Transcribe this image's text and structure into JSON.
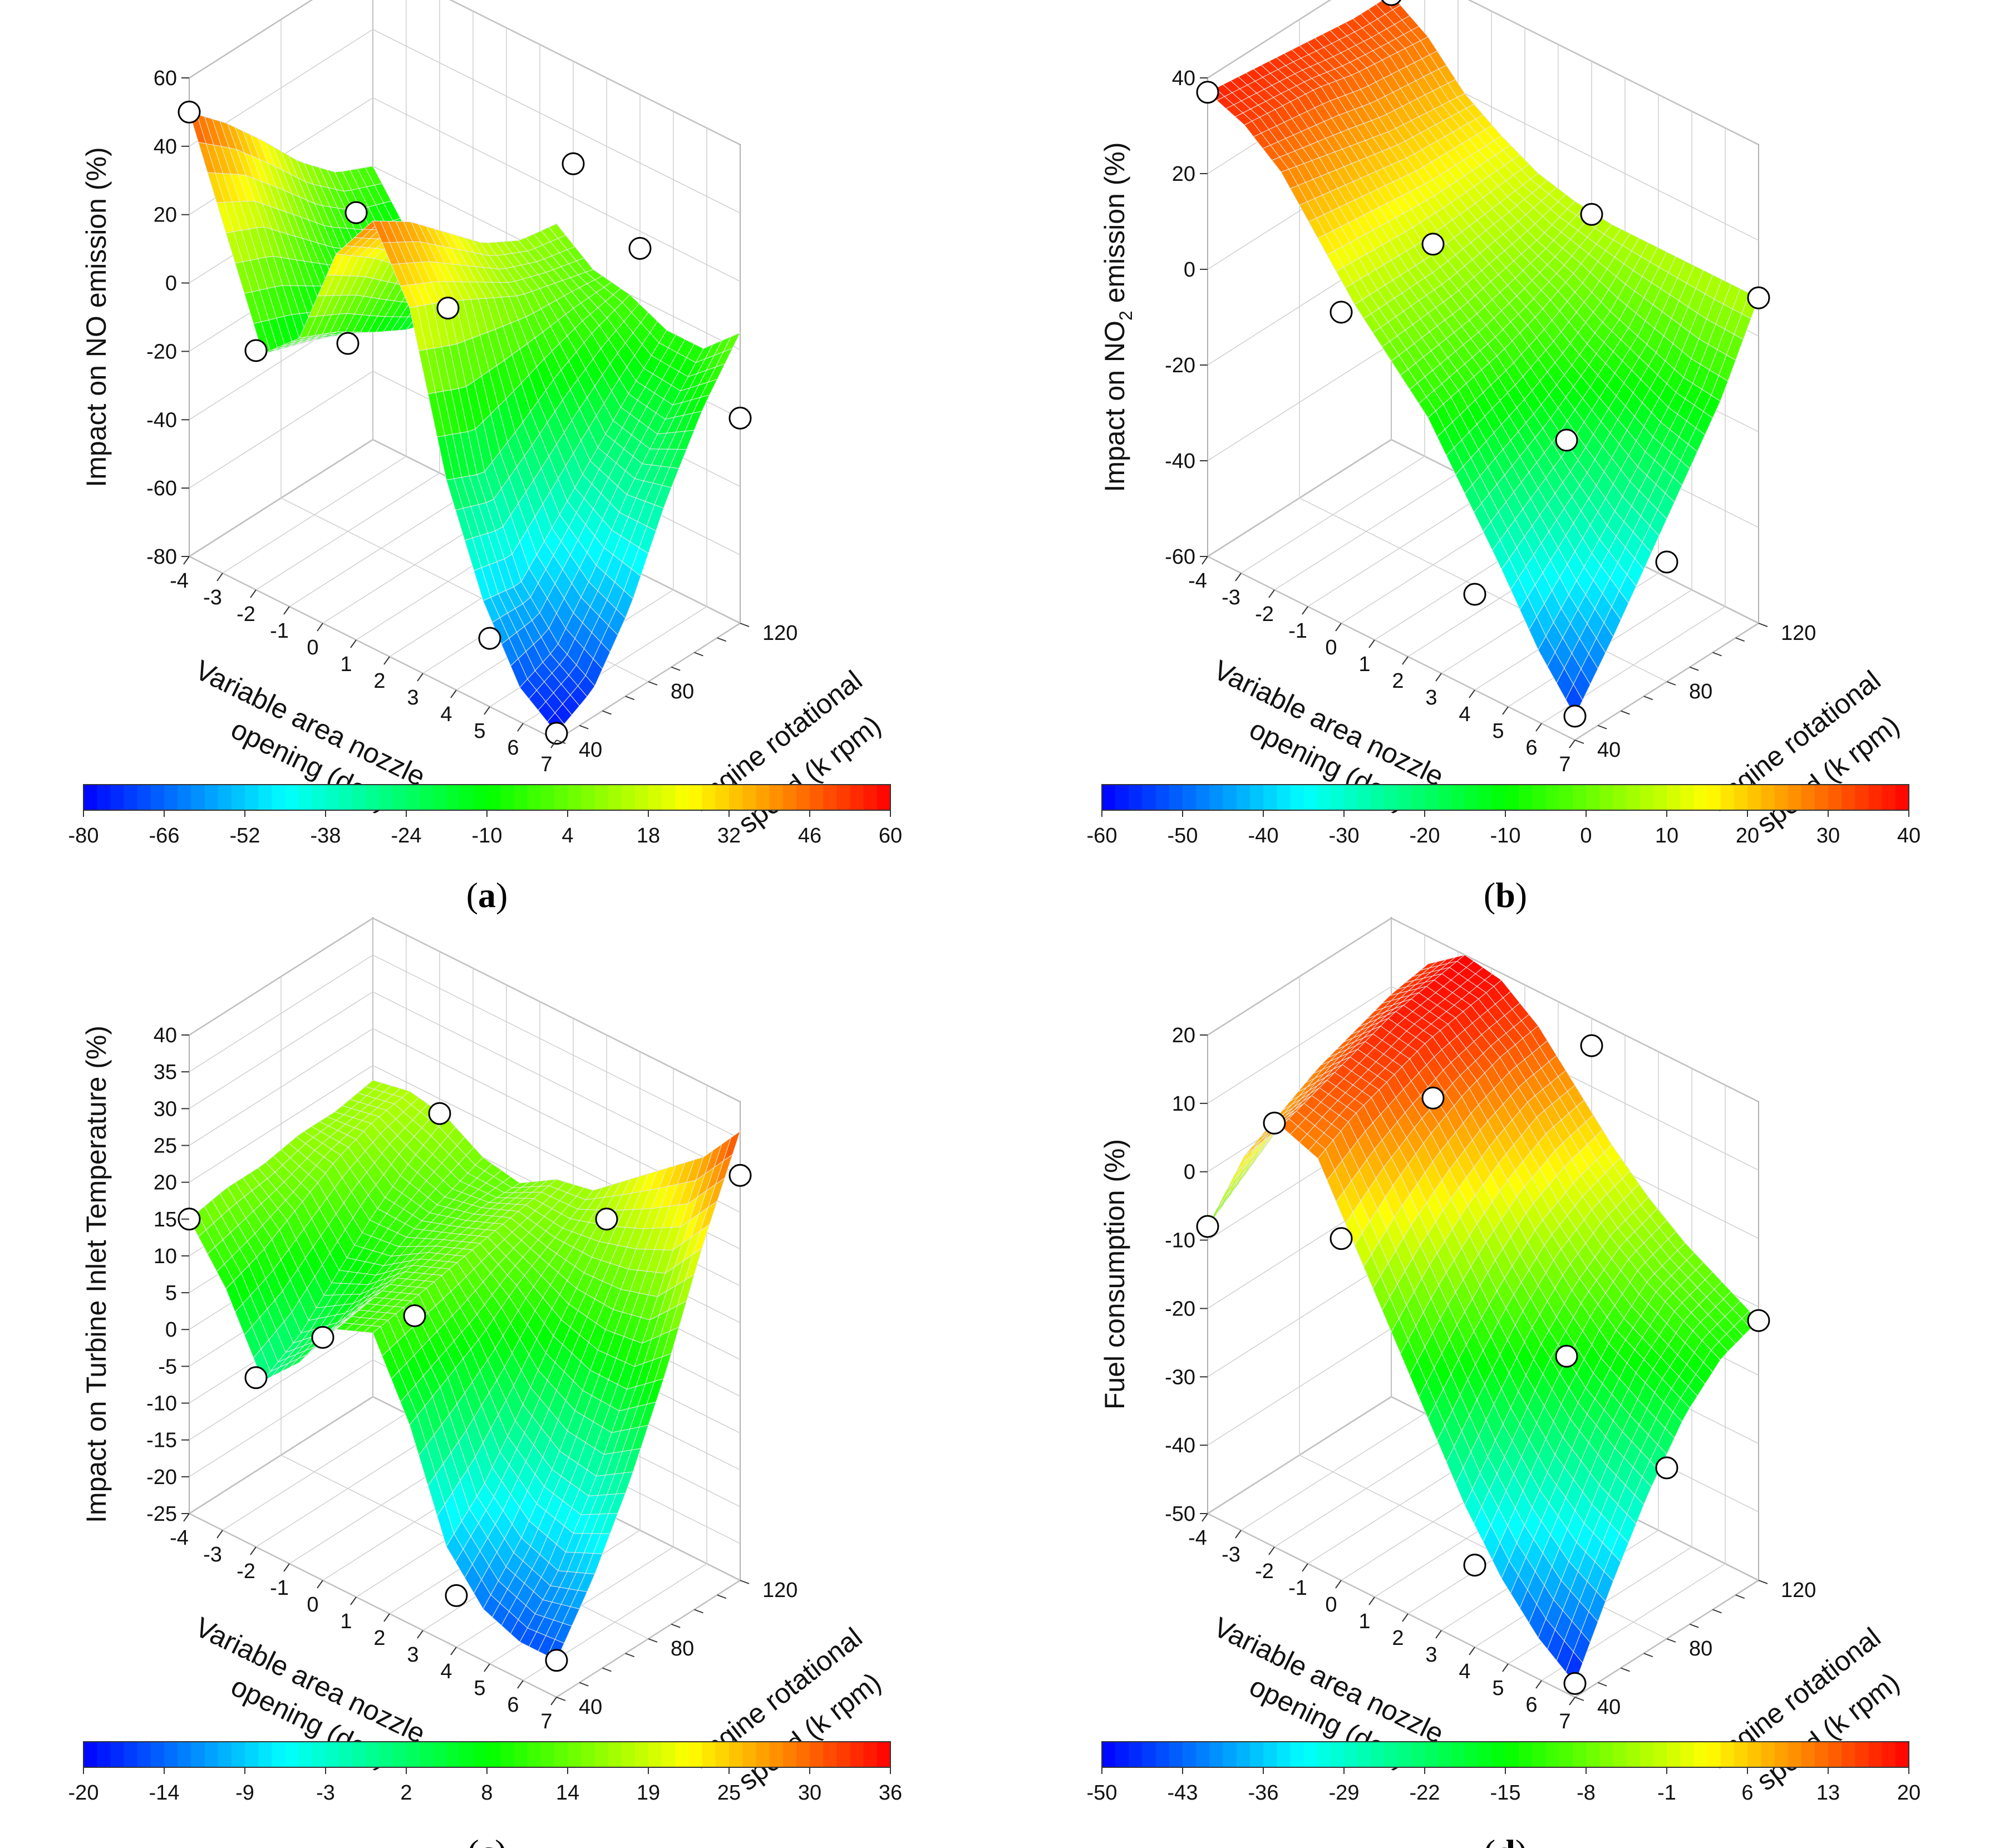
{
  "colormap": [
    "#0000ff",
    "#00ffff",
    "#00ff00",
    "#ffff00",
    "#ff0000"
  ],
  "chart_data": [
    {
      "type": "surface3d",
      "panel_label": "a",
      "zlabel": "Impact on NO emission (%)",
      "zlabel_sub": "",
      "zlabel_tail": "",
      "xlabel_line1": "Variable area nozzle",
      "xlabel_line2": "opening (deg)",
      "ylabel_line1": "Engine rotational",
      "ylabel_line2": "speed (k rpm)",
      "xticks": [
        "-4",
        "-3",
        "-2",
        "-1",
        "0",
        "1",
        "2",
        "3",
        "4",
        "5",
        "6",
        "7"
      ],
      "yticks": [
        "40",
        "80",
        "120"
      ],
      "zticks": [
        "-80",
        "-60",
        "-40",
        "-20",
        "0",
        "20",
        "40",
        "60"
      ],
      "xlim": [
        -4,
        7
      ],
      "ylim": [
        40,
        120
      ],
      "zlim": [
        -80,
        60
      ],
      "colorbar_ticks": [
        "-80",
        "-66",
        "-52",
        "-38",
        "-24",
        "-10",
        "4",
        "18",
        "32",
        "46",
        "60"
      ],
      "surface_z": [
        [
          50,
          20,
          -10,
          0,
          30,
          45,
          25,
          -20,
          -50,
          -70,
          -78
        ],
        [
          40,
          15,
          -14,
          -5,
          22,
          38,
          20,
          -25,
          -52,
          -65,
          -72
        ],
        [
          28,
          5,
          -18,
          -12,
          12,
          28,
          14,
          -18,
          -40,
          -50,
          -55
        ],
        [
          15,
          -5,
          -22,
          -18,
          2,
          18,
          8,
          -10,
          -28,
          -32,
          -30
        ],
        [
          5,
          -12,
          -24,
          -20,
          -4,
          12,
          5,
          -4,
          -16,
          -18,
          -10
        ],
        [
          0,
          -15,
          -25,
          -18,
          -6,
          10,
          2,
          0,
          -5,
          -5,
          5
        ]
      ],
      "points": [
        {
          "x": -4,
          "y": 40,
          "z": 50
        },
        {
          "x": -2,
          "y": 40,
          "z": -10
        },
        {
          "x": -2,
          "y": 80,
          "z": -25
        },
        {
          "x": 1,
          "y": 40,
          "z": 45
        },
        {
          "x": 1,
          "y": 80,
          "z": 0
        },
        {
          "x": 2,
          "y": 120,
          "z": 30
        },
        {
          "x": 4,
          "y": 120,
          "z": 15
        },
        {
          "x": 5,
          "y": 40,
          "z": -60
        },
        {
          "x": 7,
          "y": 40,
          "z": -78
        },
        {
          "x": 7,
          "y": 120,
          "z": -20
        }
      ]
    },
    {
      "type": "surface3d",
      "panel_label": "b",
      "zlabel": "Impact on NO",
      "zlabel_sub": "2",
      "zlabel_tail": " emission (%)",
      "xlabel_line1": "Variable area nozzle",
      "xlabel_line2": "opening (deg)",
      "ylabel_line1": "Engine rotational",
      "ylabel_line2": "speed (k rpm)",
      "xticks": [
        "-4",
        "-3",
        "-2",
        "-1",
        "0",
        "1",
        "2",
        "3",
        "4",
        "5",
        "6",
        "7"
      ],
      "yticks": [
        "40",
        "80",
        "120"
      ],
      "zticks": [
        "-60",
        "-40",
        "-20",
        "0",
        "20",
        "40"
      ],
      "xlim": [
        -4,
        7
      ],
      "ylim": [
        40,
        120
      ],
      "zlim": [
        -60,
        40
      ],
      "colorbar_ticks": [
        "-60",
        "-50",
        "-40",
        "-30",
        "-20",
        "-10",
        "0",
        "10",
        "20",
        "30",
        "40"
      ],
      "surface_z": [
        [
          37,
          34,
          28,
          18,
          8,
          0,
          -8,
          -20,
          -32,
          -45,
          -55
        ],
        [
          36,
          33,
          26,
          17,
          8,
          1,
          -6,
          -16,
          -26,
          -36,
          -44
        ],
        [
          35,
          32,
          24,
          16,
          8,
          2,
          -4,
          -12,
          -20,
          -27,
          -32
        ],
        [
          34,
          30,
          22,
          15,
          9,
          4,
          -1,
          -7,
          -12,
          -17,
          -20
        ],
        [
          33,
          29,
          21,
          15,
          10,
          6,
          3,
          -1,
          -4,
          -7,
          -8
        ],
        [
          33,
          28,
          20,
          15,
          11,
          9,
          8,
          8,
          8,
          8,
          8
        ]
      ],
      "points": [
        {
          "x": -4,
          "y": 40,
          "z": 37
        },
        {
          "x": -4,
          "y": 120,
          "z": 33
        },
        {
          "x": 0,
          "y": 40,
          "z": 5
        },
        {
          "x": 0,
          "y": 80,
          "z": 7
        },
        {
          "x": 2,
          "y": 120,
          "z": 8
        },
        {
          "x": 4,
          "y": 40,
          "z": -40
        },
        {
          "x": 4,
          "y": 80,
          "z": -20
        },
        {
          "x": 7,
          "y": 40,
          "z": -55
        },
        {
          "x": 7,
          "y": 80,
          "z": -35
        },
        {
          "x": 7,
          "y": 120,
          "z": 8
        }
      ]
    },
    {
      "type": "surface3d",
      "panel_label": "c",
      "zlabel": "Impact on Turbine Inlet Temperature (%)",
      "zlabel_sub": "",
      "zlabel_tail": "",
      "xlabel_line1": "Variable area nozzle",
      "xlabel_line2": "opening (deg)",
      "ylabel_line1": "Engine rotational",
      "ylabel_line2": "speed (k rpm)",
      "xticks": [
        "-4",
        "-3",
        "-2",
        "-1",
        "0",
        "1",
        "2",
        "3",
        "4",
        "5",
        "6",
        "7"
      ],
      "yticks": [
        "40",
        "80",
        "120"
      ],
      "zticks": [
        "-25",
        "-20",
        "-15",
        "-10",
        "-5",
        "0",
        "5",
        "10",
        "15",
        "20",
        "25",
        "30",
        "35",
        "40"
      ],
      "xlim": [
        -4,
        7
      ],
      "ylim": [
        40,
        120
      ],
      "zlim": [
        -25,
        40
      ],
      "colorbar_ticks": [
        "-20",
        "-14",
        "-9",
        "-3",
        "2",
        "8",
        "14",
        "19",
        "25",
        "30",
        "36"
      ],
      "surface_z": [
        [
          15,
          8,
          -2,
          3,
          10,
          12,
          2,
          -12,
          -18,
          -20,
          -20
        ],
        [
          16,
          10,
          1,
          5,
          11,
          13,
          5,
          -7,
          -12,
          -14,
          -12
        ],
        [
          16,
          13,
          6,
          8,
          12,
          14,
          8,
          0,
          -4,
          -5,
          -2
        ],
        [
          17,
          16,
          11,
          11,
          13,
          15,
          12,
          8,
          6,
          6,
          10
        ],
        [
          17,
          18,
          15,
          13,
          14,
          16,
          15,
          15,
          16,
          18,
          24
        ],
        [
          18,
          19,
          18,
          15,
          14,
          17,
          18,
          22,
          26,
          30,
          36
        ]
      ],
      "points": [
        {
          "x": -4,
          "y": 40,
          "z": 15
        },
        {
          "x": -2,
          "y": 40,
          "z": -2
        },
        {
          "x": -2,
          "y": 120,
          "z": 18
        },
        {
          "x": 0,
          "y": 40,
          "z": 8
        },
        {
          "x": 0,
          "y": 80,
          "z": 3
        },
        {
          "x": 3,
          "y": 120,
          "z": 15
        },
        {
          "x": 4,
          "y": 40,
          "z": -18
        },
        {
          "x": 7,
          "y": 40,
          "z": -20
        },
        {
          "x": 7,
          "y": 120,
          "z": 30
        }
      ]
    },
    {
      "type": "surface3d",
      "panel_label": "d",
      "zlabel": "Fuel consumption (%)",
      "zlabel_sub": "",
      "zlabel_tail": "",
      "xlabel_line1": "Variable area nozzle",
      "xlabel_line2": "opening (deg)",
      "ylabel_line1": "Engine rotational",
      "ylabel_line2": "speed (k rpm)",
      "xticks": [
        "-4",
        "-3",
        "-2",
        "-1",
        "0",
        "1",
        "2",
        "3",
        "4",
        "5",
        "6",
        "7"
      ],
      "yticks": [
        "40",
        "80",
        "120"
      ],
      "zticks": [
        "-50",
        "-40",
        "-30",
        "-20",
        "-10",
        "0",
        "10",
        "20"
      ],
      "xlim": [
        -4,
        7
      ],
      "ylim": [
        40,
        120
      ],
      "zlim": [
        -50,
        20
      ],
      "colorbar_ticks": [
        "-50",
        "-43",
        "-36",
        "-29",
        "-22",
        "-15",
        "-8",
        "-1",
        "6",
        "13",
        "20"
      ],
      "surface_z": [
        [
          -8,
          5,
          12,
          10,
          0,
          -10,
          -20,
          -30,
          -38,
          -44,
          -48
        ],
        [
          -4,
          8,
          14,
          13,
          5,
          -4,
          -13,
          -22,
          -29,
          -34,
          -37
        ],
        [
          0,
          11,
          16,
          15,
          9,
          1,
          -7,
          -14,
          -20,
          -24,
          -27
        ],
        [
          3,
          13,
          18,
          17,
          12,
          5,
          -2,
          -8,
          -13,
          -16,
          -19
        ],
        [
          5,
          15,
          19,
          18,
          14,
          8,
          1,
          -4,
          -8,
          -11,
          -14
        ],
        [
          6,
          16,
          20,
          19,
          15,
          9,
          3,
          -2,
          -6,
          -9,
          -12
        ]
      ],
      "points": [
        {
          "x": -4,
          "y": 40,
          "z": -8
        },
        {
          "x": -2,
          "y": 40,
          "z": 12
        },
        {
          "x": 0,
          "y": 40,
          "z": 0
        },
        {
          "x": 0,
          "y": 80,
          "z": 12
        },
        {
          "x": 2,
          "y": 120,
          "z": 16
        },
        {
          "x": 4,
          "y": 40,
          "z": -38
        },
        {
          "x": 4,
          "y": 80,
          "z": -16
        },
        {
          "x": 7,
          "y": 40,
          "z": -48
        },
        {
          "x": 7,
          "y": 80,
          "z": -25
        },
        {
          "x": 7,
          "y": 120,
          "z": -12
        }
      ]
    }
  ]
}
